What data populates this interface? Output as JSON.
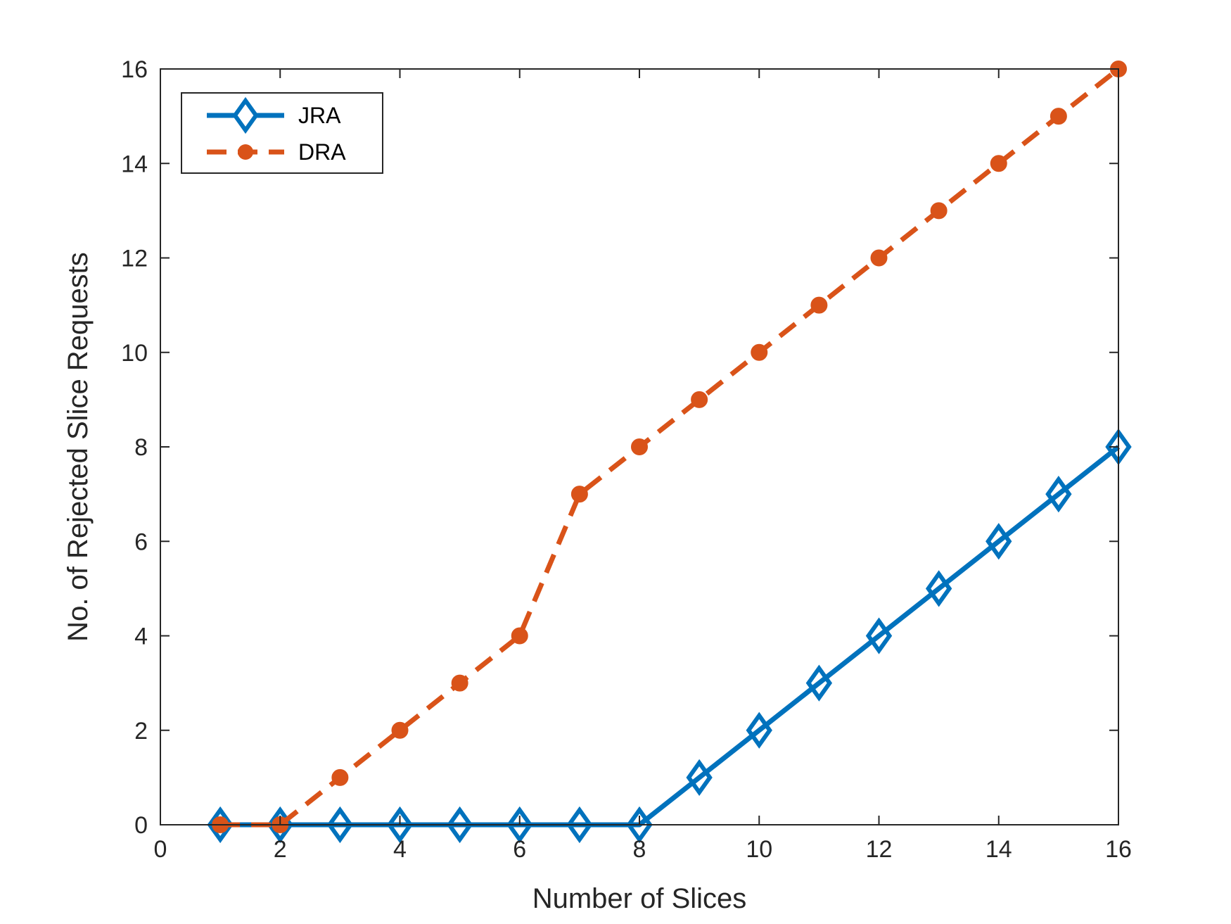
{
  "chart_data": {
    "type": "line",
    "title": "",
    "xlabel": "Number of Slices",
    "ylabel": "No. of Rejected Slice Requests",
    "xlim": [
      0,
      16
    ],
    "ylim": [
      0,
      16
    ],
    "xticks": [
      0,
      2,
      4,
      6,
      8,
      10,
      12,
      14,
      16
    ],
    "yticks": [
      0,
      2,
      4,
      6,
      8,
      10,
      12,
      14,
      16
    ],
    "grid": false,
    "legend_position": "top-left",
    "x": [
      1,
      2,
      3,
      4,
      5,
      6,
      7,
      8,
      9,
      10,
      11,
      12,
      13,
      14,
      15,
      16
    ],
    "series": [
      {
        "name": "JRA",
        "values": [
          0,
          0,
          0,
          0,
          0,
          0,
          0,
          0,
          1,
          2,
          3,
          4,
          5,
          6,
          7,
          8
        ],
        "color": "#0072BD",
        "line_style": "solid",
        "marker": "diamond"
      },
      {
        "name": "DRA",
        "values": [
          0,
          0,
          1,
          2,
          3,
          4,
          7,
          8,
          9,
          10,
          11,
          12,
          13,
          14,
          15,
          16
        ],
        "color": "#D95319",
        "line_style": "dashed",
        "marker": "circle"
      }
    ]
  }
}
